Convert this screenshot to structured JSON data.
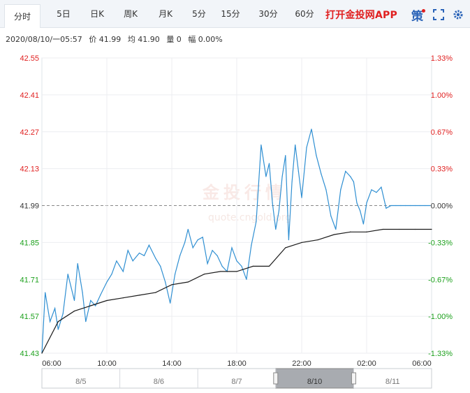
{
  "tabs": [
    {
      "label": "分时",
      "active": true
    },
    {
      "label": "5日"
    },
    {
      "label": "日K"
    },
    {
      "label": "周K"
    },
    {
      "label": "月K"
    },
    {
      "label": "5分"
    },
    {
      "label": "15分"
    },
    {
      "label": "30分"
    },
    {
      "label": "60分"
    }
  ],
  "promo_label": "打开金投网APP",
  "strategy_label": "策",
  "icons": {
    "fullscreen": "fullscreen-icon",
    "settings": "gear-icon"
  },
  "info": {
    "datetime": "2020/08/10/一05:57",
    "price": "价 41.99",
    "avg": "均 41.90",
    "volume": "量 0",
    "change": "幅 0.00%"
  },
  "watermark": {
    "brand": "金投行情",
    "url": "quote.cngold.org"
  },
  "colors": {
    "price_line": "#2f8fd2",
    "avg_line": "#1a1a1a",
    "up": "#e02020",
    "down": "#1ca01c",
    "neutral": "#333333",
    "grid": "#eceef1"
  },
  "chart_data": {
    "type": "line",
    "title": "",
    "xlabel": "",
    "ylabel": "",
    "base_price": 41.99,
    "ylim": [
      41.43,
      42.55
    ],
    "y_ticks": [
      "42.55",
      "42.41",
      "42.27",
      "42.13",
      "41.99",
      "41.85",
      "41.71",
      "41.57",
      "41.43"
    ],
    "pct_ticks": [
      "1.33%",
      "1.00%",
      "0.67%",
      "0.33%",
      "0.00%",
      "-0.33%",
      "-0.67%",
      "-1.00%",
      "-1.33%"
    ],
    "x_ticks": [
      "06:00",
      "10:00",
      "14:00",
      "18:00",
      "22:00",
      "02:00",
      "06:00"
    ],
    "x_range_hours": [
      0,
      24
    ],
    "series": [
      {
        "key": "price",
        "x": [
          0,
          0.2,
          0.5,
          0.8,
          1.0,
          1.3,
          1.6,
          2.0,
          2.2,
          2.5,
          2.7,
          3.0,
          3.3,
          3.6,
          4.0,
          4.3,
          4.6,
          5.0,
          5.3,
          5.6,
          6.0,
          6.3,
          6.6,
          7.0,
          7.3,
          7.6,
          7.9,
          8.2,
          8.5,
          8.8,
          9.0,
          9.3,
          9.6,
          9.9,
          10.2,
          10.5,
          10.8,
          11.1,
          11.4,
          11.7,
          12.0,
          12.3,
          12.6,
          12.9,
          13.2,
          13.5,
          13.8,
          14.0,
          14.2,
          14.4,
          14.6,
          14.8,
          15.0,
          15.2,
          15.4,
          15.6,
          15.8,
          16.0,
          16.3,
          16.6,
          16.9,
          17.2,
          17.5,
          17.8,
          18.1,
          18.4,
          18.7,
          19.0,
          19.2,
          19.4,
          19.6,
          19.8,
          20.0,
          20.3,
          20.6,
          20.9,
          21.2,
          21.5,
          21.8,
          22.1,
          22.4,
          22.7,
          23.0,
          23.3,
          23.6,
          23.9
        ],
        "y": [
          41.43,
          41.66,
          41.55,
          41.6,
          41.52,
          41.58,
          41.73,
          41.63,
          41.77,
          41.66,
          41.55,
          41.63,
          41.61,
          41.65,
          41.7,
          41.73,
          41.78,
          41.74,
          41.82,
          41.78,
          41.81,
          41.8,
          41.84,
          41.79,
          41.76,
          41.7,
          41.62,
          41.73,
          41.8,
          41.85,
          41.9,
          41.83,
          41.86,
          41.87,
          41.77,
          41.82,
          41.8,
          41.76,
          41.74,
          41.83,
          41.78,
          41.76,
          41.71,
          41.84,
          41.93,
          42.22,
          42.1,
          42.15,
          42.0,
          41.9,
          41.97,
          42.1,
          42.18,
          41.86,
          42.08,
          42.22,
          42.12,
          42.02,
          42.21,
          42.28,
          42.18,
          42.11,
          42.05,
          41.95,
          41.9,
          42.05,
          42.12,
          42.1,
          42.08,
          42.0,
          41.97,
          41.92,
          42.0,
          42.05,
          42.04,
          42.06,
          41.98,
          41.99,
          41.99,
          41.99,
          41.99,
          41.99,
          41.99,
          41.99,
          41.99,
          41.99
        ]
      },
      {
        "key": "average",
        "x": [
          0,
          1,
          2,
          3,
          4,
          5,
          6,
          7,
          8,
          9,
          10,
          11,
          12,
          13,
          14,
          15,
          16,
          17,
          18,
          19,
          20,
          21,
          22,
          23,
          24
        ],
        "y": [
          41.43,
          41.55,
          41.59,
          41.61,
          41.63,
          41.64,
          41.65,
          41.66,
          41.69,
          41.7,
          41.73,
          41.74,
          41.74,
          41.76,
          41.76,
          41.83,
          41.85,
          41.86,
          41.88,
          41.89,
          41.89,
          41.9,
          41.9,
          41.9,
          41.9
        ]
      }
    ]
  },
  "navigator": {
    "labels": [
      "8/5",
      "8/6",
      "8/7",
      "8/10",
      "8/11"
    ],
    "selected_index": 3
  }
}
